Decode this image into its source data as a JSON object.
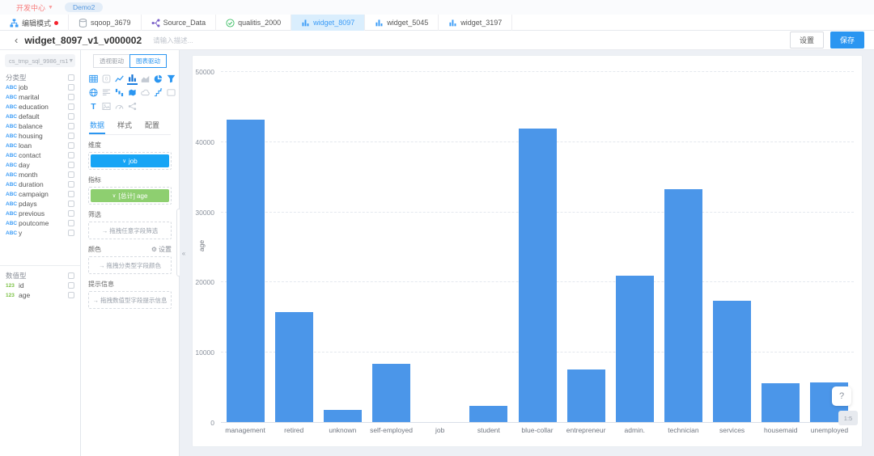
{
  "topbar": {
    "workspace": "开发中心",
    "project": "Demo2"
  },
  "tabs": [
    {
      "label": "编辑模式",
      "icon": "org-chart-icon",
      "dot": true,
      "active": false
    },
    {
      "label": "sqoop_3679",
      "icon": "database-icon",
      "dot": false,
      "active": false
    },
    {
      "label": "Source_Data",
      "icon": "dataflow-icon",
      "dot": false,
      "active": false
    },
    {
      "label": "qualitis_2000",
      "icon": "check-circle-icon",
      "dot": false,
      "active": false
    },
    {
      "label": "widget_8097",
      "icon": "widget-chart-icon",
      "dot": false,
      "active": true
    },
    {
      "label": "widget_5045",
      "icon": "widget-chart-icon",
      "dot": false,
      "active": false
    },
    {
      "label": "widget_3197",
      "icon": "widget-chart-icon",
      "dot": false,
      "active": false
    }
  ],
  "header": {
    "title": "widget_8097_v1_v000002",
    "desc_placeholder": "请输入描述...",
    "settings_label": "设置",
    "save_label": "保存"
  },
  "fields_panel": {
    "view_selector": "cs_tmp_sql_9986_rs1",
    "categorical": {
      "section_label": "分类型",
      "type_tag": "ABC",
      "items": [
        "job",
        "marital",
        "education",
        "default",
        "balance",
        "housing",
        "loan",
        "contact",
        "day",
        "month",
        "duration",
        "campaign",
        "pdays",
        "previous",
        "poutcome",
        "y"
      ]
    },
    "numeric": {
      "section_label": "数值型",
      "type_tag": "123",
      "items": [
        "id",
        "age"
      ]
    }
  },
  "config_panel": {
    "mode_toggle": {
      "options": [
        "透视驱动",
        "图表驱动"
      ],
      "selected": "图表驱动"
    },
    "chart_types": [
      {
        "name": "table-icon",
        "state": "normal"
      },
      {
        "name": "number-card-icon",
        "state": "disabled"
      },
      {
        "name": "line-chart-icon",
        "state": "normal"
      },
      {
        "name": "bar-chart-icon",
        "state": "selected"
      },
      {
        "name": "area-chart-icon",
        "state": "disabled"
      },
      {
        "name": "pie-chart-icon",
        "state": "normal"
      },
      {
        "name": "funnel-icon",
        "state": "normal"
      },
      {
        "name": "radar-icon",
        "state": "normal"
      },
      {
        "name": "pivot-table-icon",
        "state": "disabled"
      },
      {
        "name": "waterfall-icon",
        "state": "normal"
      },
      {
        "name": "map-icon",
        "state": "normal"
      },
      {
        "name": "wordcloud-icon",
        "state": "disabled"
      },
      {
        "name": "step-line-icon",
        "state": "normal"
      },
      {
        "name": "card-icon",
        "state": "disabled"
      },
      {
        "name": "text-icon",
        "state": "normal"
      },
      {
        "name": "image-icon",
        "state": "disabled"
      },
      {
        "name": "gauge-icon",
        "state": "disabled"
      },
      {
        "name": "relation-icon",
        "state": "disabled"
      }
    ],
    "tabs": [
      "数据",
      "样式",
      "配置"
    ],
    "active_tab": "数据",
    "sections": {
      "dimension": {
        "label": "维度",
        "pill": "job"
      },
      "metric": {
        "label": "指标",
        "pill": "[总计] age"
      },
      "filter": {
        "label": "筛选",
        "placeholder": "拖拽任意字段筛选"
      },
      "color": {
        "label": "颜色",
        "settings_label": "设置",
        "placeholder": "拖拽分类型字段颜色"
      },
      "tooltip": {
        "label": "提示信息",
        "placeholder": "拖拽数值型字段提示信息"
      }
    }
  },
  "chart_data": {
    "type": "bar",
    "title": "",
    "categories": [
      "management",
      "retired",
      "unknown",
      "self-employed",
      "job",
      "student",
      "blue-collar",
      "entrepreneur",
      "admin.",
      "technician",
      "services",
      "housemaid",
      "unemployed"
    ],
    "values": [
      43100,
      15700,
      1700,
      8300,
      0,
      2300,
      41800,
      7500,
      20900,
      33200,
      17300,
      5500,
      5600
    ],
    "xlabel": "",
    "ylabel": "age",
    "ylim": [
      0,
      50000
    ],
    "ytick_interval": 10000,
    "grid": true,
    "legend": false,
    "bar_color": "#4b96e9"
  },
  "floating": {
    "help": "?",
    "scale": "1:5"
  },
  "colors": {
    "accent_blue": "#2b96f1",
    "tab_active_bg": "#daeefd",
    "dimension_pill": "#18a5f5",
    "metric_pill": "#8ecf70",
    "bar": "#4b96e9",
    "edit_dot": "#f5222d",
    "workspace_text": "#f77b7b"
  }
}
